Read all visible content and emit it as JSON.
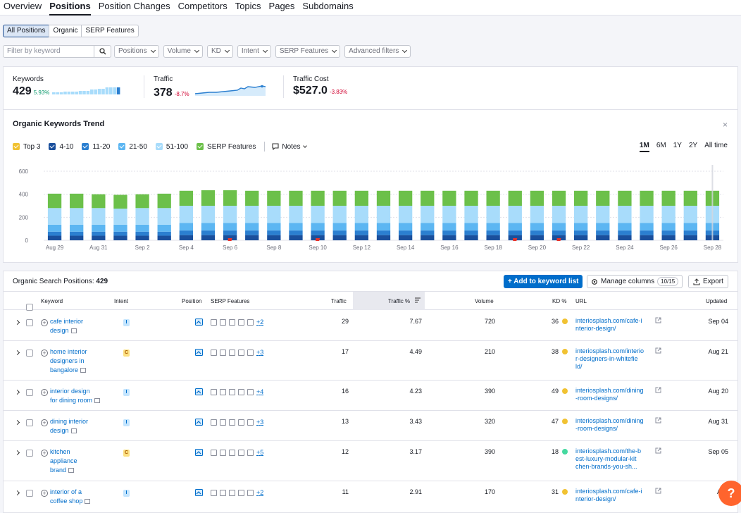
{
  "nav": {
    "tabs": [
      "Overview",
      "Positions",
      "Position Changes",
      "Competitors",
      "Topics",
      "Pages",
      "Subdomains"
    ],
    "active": "Positions"
  },
  "segments": {
    "items": [
      "All Positions",
      "Organic",
      "SERP Features"
    ],
    "active": "All Positions"
  },
  "filters": {
    "search_placeholder": "Filter by keyword",
    "dropdowns": [
      "Positions",
      "Volume",
      "KD",
      "Intent",
      "SERP Features",
      "Advanced filters"
    ]
  },
  "summary": {
    "keywords": {
      "label": "Keywords",
      "value": "429",
      "change": "5.93%"
    },
    "traffic": {
      "label": "Traffic",
      "value": "378",
      "change": "-8.7%"
    },
    "traffic_cost": {
      "label": "Traffic Cost",
      "value": "$527.0",
      "change": "-3.83%"
    }
  },
  "trend": {
    "title": "Organic Keywords Trend",
    "legend": [
      {
        "label": "Top 3",
        "color": "#f1c232"
      },
      {
        "label": "4-10",
        "color": "#1a4f9c"
      },
      {
        "label": "11-20",
        "color": "#2b7fd0"
      },
      {
        "label": "21-50",
        "color": "#5cb6f2"
      },
      {
        "label": "51-100",
        "color": "#a8dcfb"
      },
      {
        "label": "SERP Features",
        "color": "#6cc04a"
      }
    ],
    "notes_label": "Notes",
    "periods": [
      "1M",
      "6M",
      "1Y",
      "2Y",
      "All time"
    ],
    "active_period": "1M"
  },
  "chart_data": {
    "type": "bar",
    "stacked": true,
    "yticks": [
      "600",
      "400",
      "200",
      "0"
    ],
    "ylim": [
      0,
      600
    ],
    "xticks": [
      "Aug 29",
      "Aug 31",
      "Sep 2",
      "Sep 4",
      "Sep 6",
      "Sep 8",
      "Sep 10",
      "Sep 12",
      "Sep 14",
      "Sep 16",
      "Sep 18",
      "Sep 20",
      "Sep 22",
      "Sep 24",
      "Sep 26",
      "Sep 28"
    ],
    "bar_count": 31,
    "stack_order": [
      "4-10",
      "11-20",
      "21-50",
      "51-100",
      "SERP Features"
    ],
    "series": [
      {
        "name": "4-10",
        "values": [
          40,
          40,
          40,
          40,
          40,
          40,
          45,
          45,
          45,
          45,
          45,
          45,
          45,
          45,
          45,
          45,
          45,
          45,
          45,
          45,
          45,
          45,
          45,
          45,
          45,
          45,
          45,
          45,
          45,
          45,
          45
        ]
      },
      {
        "name": "11-20",
        "values": [
          35,
          35,
          35,
          35,
          35,
          35,
          40,
          40,
          40,
          40,
          40,
          40,
          40,
          40,
          40,
          40,
          40,
          40,
          40,
          40,
          40,
          40,
          40,
          40,
          40,
          40,
          40,
          40,
          40,
          40,
          40
        ]
      },
      {
        "name": "21-50",
        "values": [
          60,
          60,
          60,
          60,
          60,
          60,
          65,
          65,
          65,
          65,
          65,
          65,
          65,
          65,
          65,
          65,
          65,
          65,
          65,
          65,
          65,
          65,
          65,
          65,
          65,
          65,
          65,
          65,
          65,
          65,
          65
        ]
      },
      {
        "name": "51-100",
        "values": [
          145,
          145,
          145,
          140,
          145,
          145,
          150,
          150,
          150,
          150,
          150,
          150,
          150,
          150,
          150,
          150,
          150,
          150,
          150,
          150,
          150,
          150,
          150,
          150,
          150,
          150,
          150,
          150,
          150,
          150,
          150
        ]
      },
      {
        "name": "SERP Features",
        "values": [
          125,
          125,
          120,
          120,
          120,
          125,
          130,
          135,
          135,
          130,
          130,
          130,
          130,
          130,
          130,
          130,
          130,
          130,
          130,
          130,
          130,
          130,
          130,
          130,
          130,
          130,
          130,
          130,
          130,
          130,
          130
        ]
      }
    ],
    "flags_at_bar": [
      8,
      12,
      21,
      23
    ]
  },
  "table": {
    "title": "Organic Search Positions:",
    "count": "429",
    "add_button": "Add to keyword list",
    "manage_button": "Manage columns",
    "manage_badge": "10/15",
    "export_button": "Export",
    "headers": {
      "keyword": "Keyword",
      "intent": "Intent",
      "position": "Position",
      "serp": "SERP Features",
      "traffic": "Traffic",
      "traffic_pct": "Traffic %",
      "volume": "Volume",
      "kd": "KD %",
      "url": "URL",
      "updated": "Updated"
    },
    "rows": [
      {
        "kw": [
          "cafe interior",
          "design"
        ],
        "intent": "I",
        "more": "+2",
        "traffic": "29",
        "pct": "7.67",
        "volume": "720",
        "kd": "36",
        "kd_color": "#f1c232",
        "url": [
          "interiosplash.com/cafe-i",
          "nterior-design/"
        ],
        "updated": "Sep 04"
      },
      {
        "kw": [
          "home interior",
          "designers in",
          "bangalore"
        ],
        "intent": "C",
        "more": "+3",
        "traffic": "17",
        "pct": "4.49",
        "volume": "210",
        "kd": "38",
        "kd_color": "#f1c232",
        "url": [
          "interiosplash.com/interio",
          "r-designers-in-whitefie",
          "ld/"
        ],
        "updated": "Aug 21"
      },
      {
        "kw": [
          "interior design",
          "for dining room"
        ],
        "intent": "I",
        "more": "+4",
        "traffic": "16",
        "pct": "4.23",
        "volume": "390",
        "kd": "49",
        "kd_color": "#f1c232",
        "url": [
          "interiosplash.com/dining",
          "-room-designs/"
        ],
        "updated": "Aug 20"
      },
      {
        "kw": [
          "dining interior",
          "design"
        ],
        "intent": "I",
        "more": "+3",
        "traffic": "13",
        "pct": "3.43",
        "volume": "320",
        "kd": "47",
        "kd_color": "#f1c232",
        "url": [
          "interiosplash.com/dining",
          "-room-designs/"
        ],
        "updated": "Aug 31"
      },
      {
        "kw": [
          "kitchen",
          "appliance",
          "brand"
        ],
        "intent": "C",
        "more": "+5",
        "traffic": "12",
        "pct": "3.17",
        "volume": "390",
        "kd": "18",
        "kd_color": "#45d9a0",
        "url": [
          "interiosplash.com/the-b",
          "est-luxury-modular-kit",
          "chen-brands-you-sh..."
        ],
        "updated": "Sep 05"
      },
      {
        "kw": [
          "interior of a",
          "coffee shop"
        ],
        "intent": "I",
        "more": "+2",
        "traffic": "11",
        "pct": "2.91",
        "volume": "170",
        "kd": "31",
        "kd_color": "#f1c232",
        "url": [
          "interiosplash.com/cafe-i",
          "nterior-design/"
        ],
        "updated": "Aug"
      }
    ]
  },
  "help": "?"
}
